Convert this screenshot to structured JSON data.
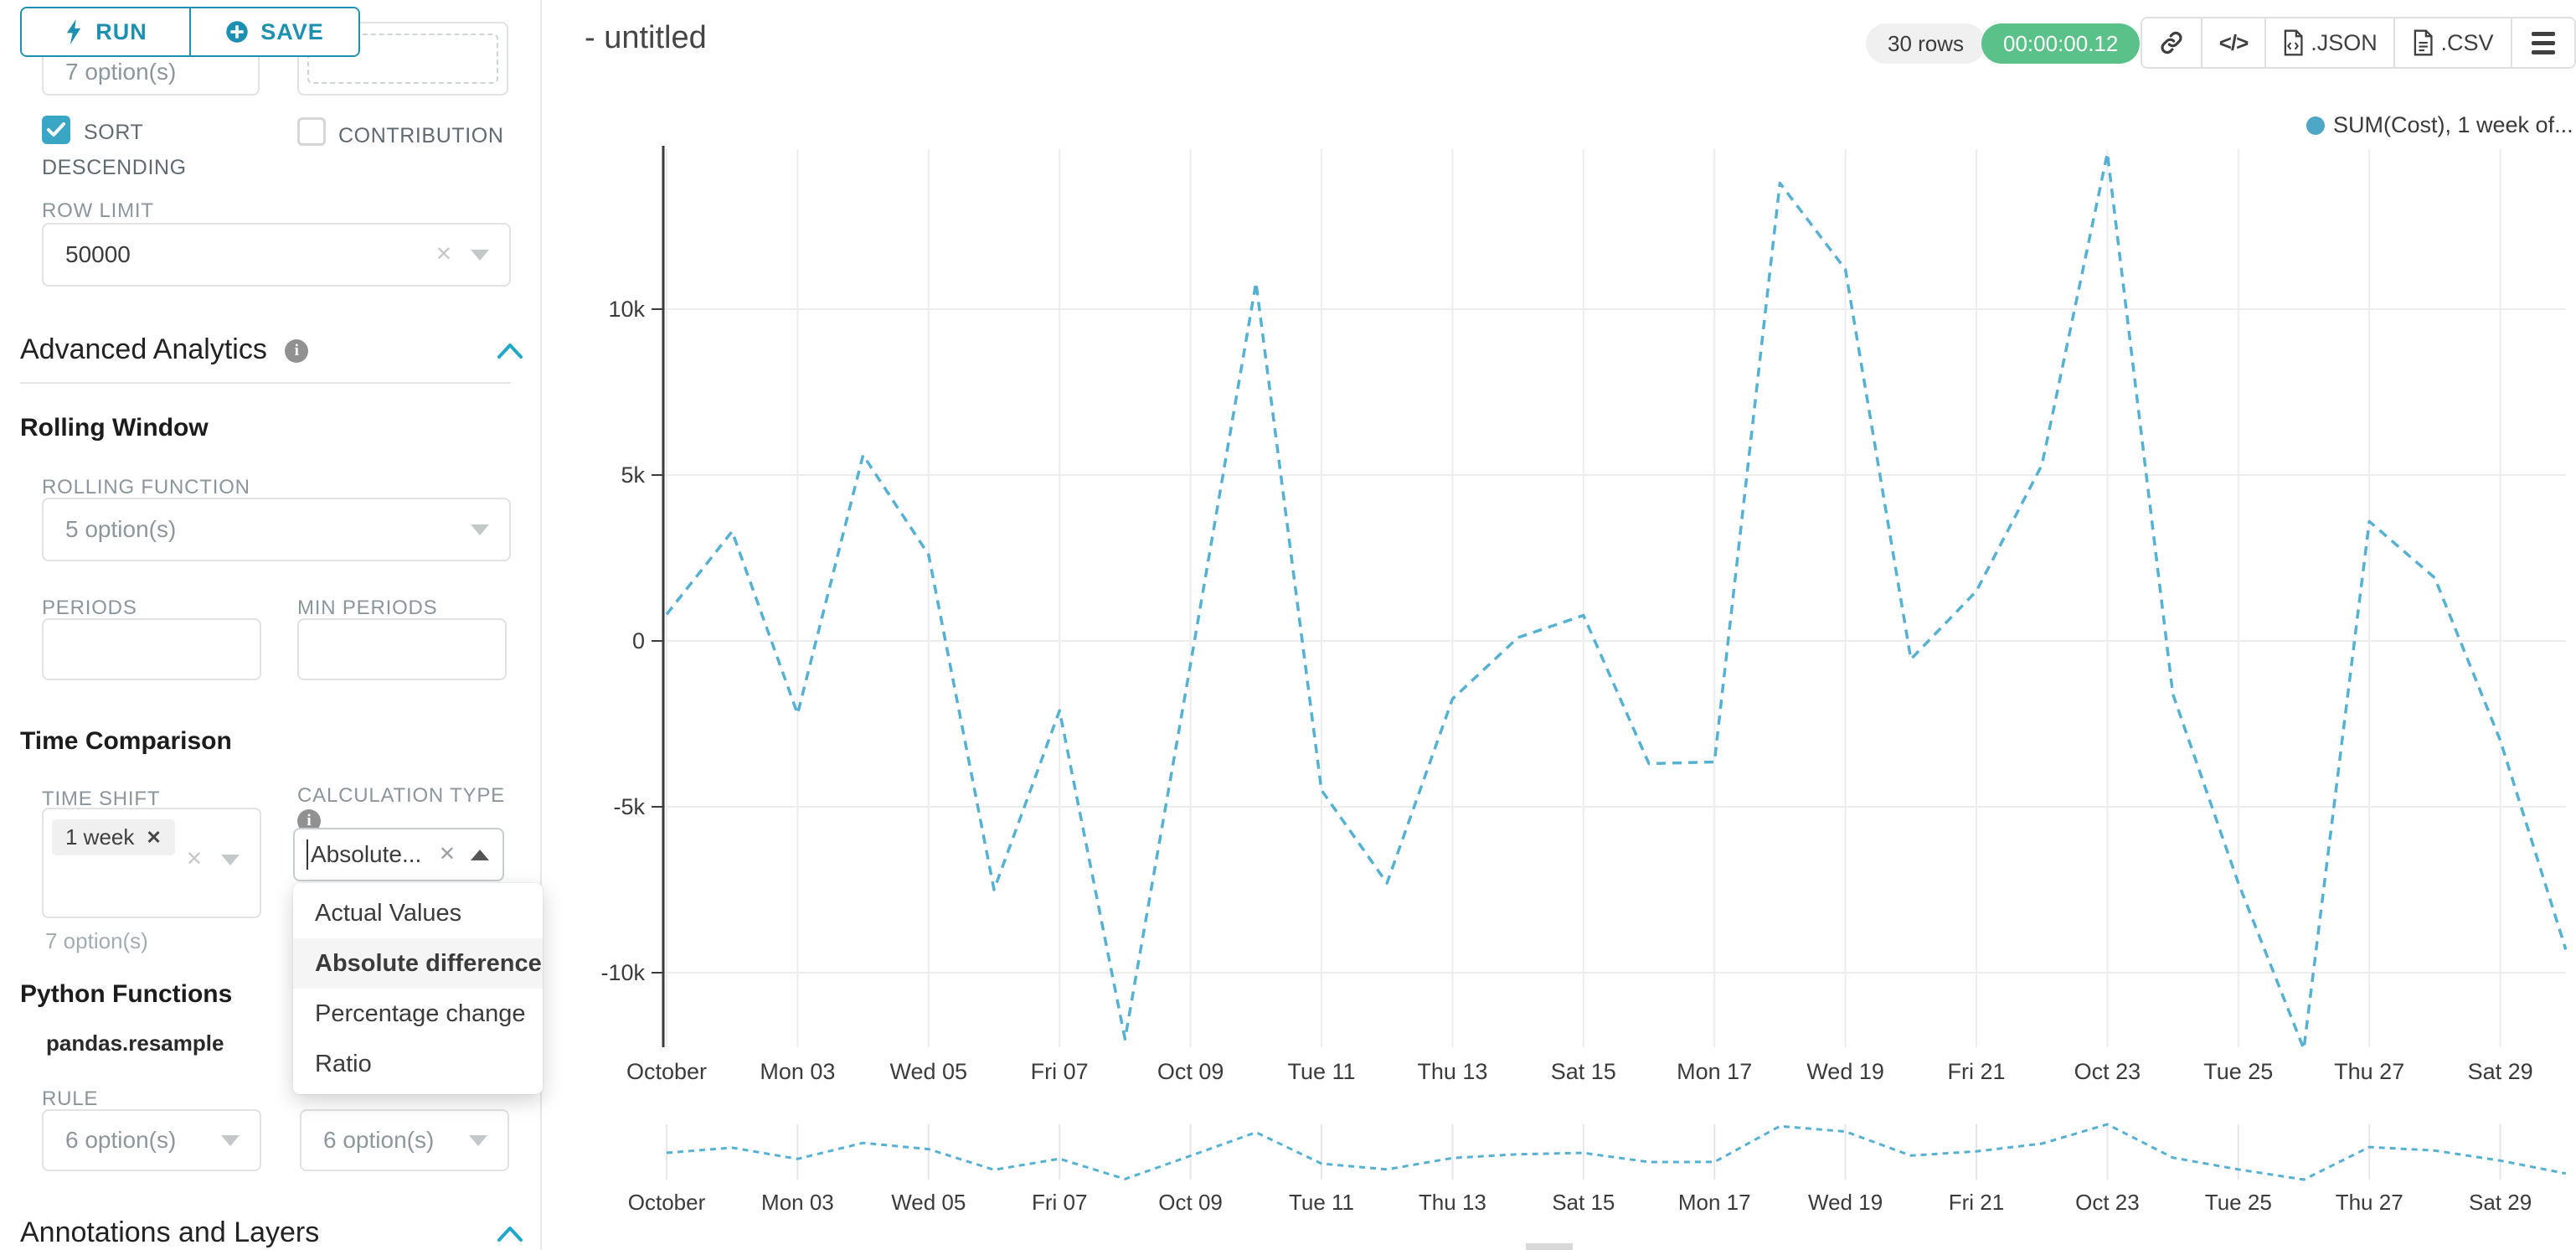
{
  "colors": {
    "primary": "#1d8fb0",
    "accent": "#20a7c9",
    "checkbox_fill": "#3aa6c6",
    "timer_badge_bg": "#5ac189",
    "line": "#55b1d3",
    "legend_dot": "#4fa7c7",
    "gridline": "#ededed",
    "axis_line": "#3b3b3b"
  },
  "sidebar": {
    "run_label": "RUN",
    "save_label": "SAVE",
    "top_left_select_value": "7 option(s)",
    "sort_descending_label_line1": "SORT",
    "sort_descending_label_line2": "DESCENDING",
    "sort_descending_checked": true,
    "contribution_label": "CONTRIBUTION",
    "contribution_checked": false,
    "row_limit_label": "ROW LIMIT",
    "row_limit_value": "50000",
    "advanced_analytics_title": "Advanced Analytics",
    "rolling_window_title": "Rolling Window",
    "rolling_function_label": "ROLLING FUNCTION",
    "rolling_function_placeholder": "5 option(s)",
    "periods_label": "PERIODS",
    "min_periods_label": "MIN PERIODS",
    "time_comparison_title": "Time Comparison",
    "time_shift_label": "TIME SHIFT",
    "time_shift_tag": "1 week",
    "time_shift_helper": "7 option(s)",
    "calculation_type_label": "CALCULATION TYPE",
    "calculation_type_value": "Absolute...",
    "calculation_type_options": [
      "Actual Values",
      "Absolute difference",
      "Percentage change",
      "Ratio"
    ],
    "calculation_type_selected": "Absolute difference",
    "python_functions_title": "Python Functions",
    "python_functions_subtitle": "pandas.resample",
    "rule_label": "RULE",
    "rule_placeholder": "6 option(s)",
    "fill_method_placeholder": "6 option(s)",
    "annotations_title": "Annotations and Layers"
  },
  "header": {
    "title": "- untitled",
    "rows_badge": "30 rows",
    "timer_badge": "00:00:00.12",
    "export_json_label": ".JSON",
    "export_csv_label": ".CSV"
  },
  "chart_data": {
    "type": "line",
    "legend": "SUM(Cost), 1 week of...",
    "x_categories": [
      "Oct 01",
      "Oct 02",
      "Oct 03",
      "Oct 04",
      "Oct 05",
      "Oct 06",
      "Oct 07",
      "Oct 08",
      "Oct 09",
      "Oct 10",
      "Oct 11",
      "Oct 12",
      "Oct 13",
      "Oct 14",
      "Oct 15",
      "Oct 16",
      "Oct 17",
      "Oct 18",
      "Oct 19",
      "Oct 20",
      "Oct 21",
      "Oct 22",
      "Oct 23",
      "Oct 24",
      "Oct 25",
      "Oct 26",
      "Oct 27",
      "Oct 28",
      "Oct 29",
      "Oct 30"
    ],
    "series": [
      {
        "name": "SUM(Cost), 1 week of...",
        "style": "dashed",
        "values": [
          800,
          3300,
          -2200,
          5600,
          2600,
          -7500,
          -2100,
          -12000,
          -700,
          10800,
          -4500,
          -7300,
          -1750,
          100,
          770,
          -3700,
          -3650,
          13800,
          11200,
          -550,
          1500,
          5300,
          14700,
          -1600,
          -7300,
          -12300,
          3600,
          1900,
          -3000,
          -9300
        ]
      }
    ],
    "x_tick_labels": [
      "October",
      "Mon 03",
      "Wed 05",
      "Fri 07",
      "Oct 09",
      "Tue 11",
      "Thu 13",
      "Sat 15",
      "Mon 17",
      "Wed 19",
      "Fri 21",
      "Oct 23",
      "Tue 25",
      "Thu 27",
      "Sat 29"
    ],
    "y_tick_labels": [
      "10k",
      "5k",
      "0",
      "-5k",
      "-10k"
    ],
    "y_tick_values": [
      10000,
      5000,
      0,
      -5000,
      -10000
    ],
    "ylim": [
      -12250,
      14800
    ],
    "grid": true,
    "legend_position": "top-right",
    "has_mini_preview": true
  }
}
